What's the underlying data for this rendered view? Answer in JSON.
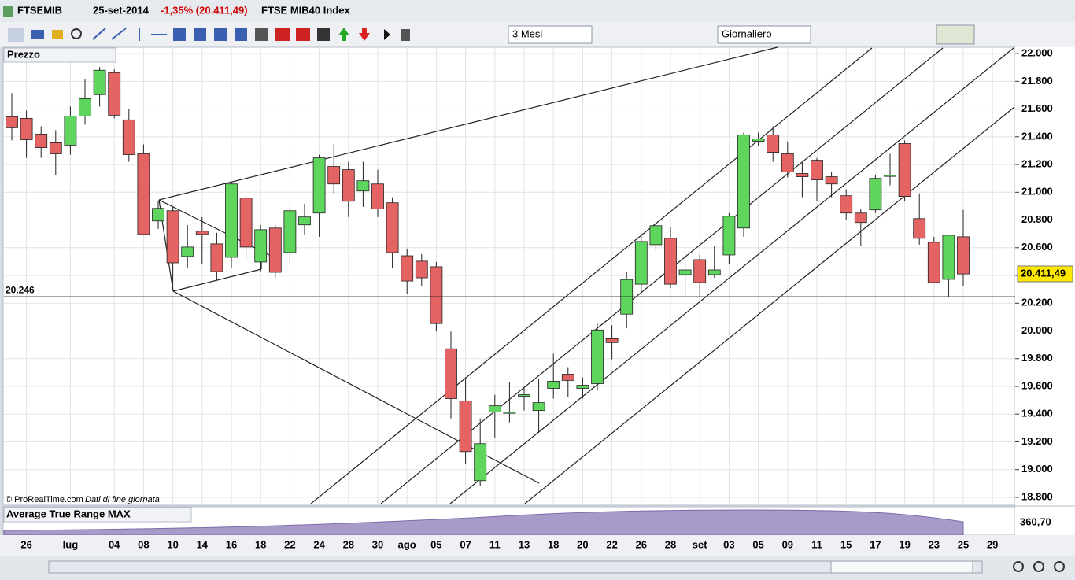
{
  "header": {
    "symbol": "FTSEMIB",
    "date": "25-set-2014",
    "change": "-1,35% (20.411,49)",
    "name": "FTSE MIB40 Index"
  },
  "toolbar": {
    "period": "3 Mesi",
    "interval": "Giornaliero"
  },
  "panel": {
    "title": "Prezzo",
    "copyright": "© ProRealTime.com",
    "note": "Dati di fine giornata"
  },
  "atr_panel": {
    "title": "Average True Range MAX",
    "value": "360,70"
  },
  "chart_data": {
    "type": "candlestick",
    "categories": [
      null,
      "26",
      null,
      null,
      "lug",
      null,
      null,
      "04",
      null,
      "08",
      null,
      "10",
      null,
      "14",
      null,
      "16",
      null,
      "18",
      null,
      "22",
      null,
      "24",
      null,
      "28",
      null,
      "30",
      null,
      "ago",
      null,
      "05",
      null,
      "07",
      null,
      "11",
      null,
      "13",
      null,
      "18",
      null,
      "20",
      null,
      "22",
      null,
      "26",
      null,
      "28",
      null,
      "set",
      null,
      "03",
      null,
      "05",
      null,
      "09",
      null,
      "11",
      null,
      "15",
      null,
      "17",
      null,
      "19",
      null,
      "23",
      null,
      "25",
      null,
      "29"
    ],
    "open": [
      21545,
      21533,
      21419,
      21357,
      21340,
      21550,
      21704,
      21863,
      21522,
      21277,
      20793,
      20867,
      20537,
      20719,
      20628,
      20531,
      20958,
      20497,
      20742,
      20565,
      20765,
      20850,
      21186,
      21163,
      21009,
      21060,
      20924,
      20542,
      20503,
      20463,
      19871,
      19495,
      18920,
      19415,
      19415,
      19529,
      19426,
      19586,
      19688,
      19586,
      19620,
      19944,
      20121,
      20337,
      20622,
      20668,
      20406,
      20514,
      20406,
      20548,
      20742,
      21368,
      21414,
      21277,
      21135,
      21231,
      21112,
      20975,
      20850,
      20873,
      21123,
      21351,
      20810,
      20639,
      20372,
      20679,
      null,
      null
    ],
    "high": [
      21715,
      21590,
      21476,
      21448,
      21618,
      21818,
      21903,
      21886,
      21601,
      21345,
      20935,
      20895,
      20764,
      20821,
      20708,
      21078,
      20975,
      20764,
      20764,
      20895,
      20918,
      21271,
      21345,
      21220,
      21220,
      21163,
      20964,
      20594,
      20554,
      20497,
      19996,
      19665,
      19369,
      19540,
      19631,
      19597,
      19654,
      19836,
      19739,
      19665,
      20053,
      20041,
      20423,
      20708,
      20782,
      20747,
      20565,
      20554,
      20611,
      20850,
      21431,
      21431,
      21476,
      21362,
      21220,
      21248,
      21146,
      21021,
      20878,
      21123,
      21277,
      21374,
      20992,
      20679,
      20690,
      20873,
      null,
      null
    ],
    "low": [
      21374,
      21248,
      21248,
      21123,
      21271,
      21488,
      21618,
      21533,
      21220,
      20696,
      20736,
      20309,
      20451,
      20480,
      20366,
      20451,
      20508,
      20423,
      20383,
      20491,
      20696,
      20679,
      20992,
      20821,
      20895,
      20821,
      20451,
      20269,
      20326,
      19996,
      19369,
      19039,
      18880,
      19227,
      19341,
      19426,
      19267,
      19512,
      19523,
      19512,
      19569,
      19796,
      20019,
      20280,
      20577,
      20309,
      20252,
      20252,
      20383,
      20480,
      20679,
      21334,
      21220,
      21106,
      20964,
      20935,
      20964,
      20804,
      20611,
      20850,
      21049,
      20935,
      20622,
      20349,
      20241,
      20326,
      null,
      null
    ],
    "close": [
      21465,
      21379,
      21322,
      21277,
      21550,
      21675,
      21880,
      21556,
      21271,
      20696,
      20884,
      20491,
      20605,
      20696,
      20428,
      21060,
      20605,
      20730,
      20423,
      20867,
      20822,
      21248,
      21060,
      20935,
      21083,
      20879,
      20565,
      20360,
      20383,
      20053,
      19512,
      19130,
      19187,
      19460,
      19415,
      19540,
      19483,
      19637,
      19643,
      19608,
      20007,
      19916,
      20371,
      20645,
      20759,
      20337,
      20440,
      20349,
      20440,
      20827,
      21414,
      21385,
      21288,
      21146,
      21112,
      21089,
      21060,
      20850,
      20782,
      21100,
      21123,
      20970,
      20668,
      20349,
      20690,
      20411,
      null,
      null
    ],
    "up_color": "#5ed65e",
    "down_color": "#e46464",
    "ylim": [
      18743,
      22046
    ],
    "yticks": [
      {
        "value": 18800,
        "label": "18.800"
      },
      {
        "value": 19000,
        "label": "19.000"
      },
      {
        "value": 19200,
        "label": "19.200"
      },
      {
        "value": 19400,
        "label": "19.400"
      },
      {
        "value": 19600,
        "label": "19.600"
      },
      {
        "value": 19800,
        "label": "19.800"
      },
      {
        "value": 20000,
        "label": "20.000"
      },
      {
        "value": 20200,
        "label": "20.200"
      },
      {
        "value": 20400,
        "label": "20.400"
      },
      {
        "value": 20600,
        "label": "20.600"
      },
      {
        "value": 20800,
        "label": "20.800"
      },
      {
        "value": 21000,
        "label": "21.000"
      },
      {
        "value": 21200,
        "label": "21.200"
      },
      {
        "value": 21400,
        "label": "21.400"
      },
      {
        "value": 21600,
        "label": "21.600"
      },
      {
        "value": 21800,
        "label": "21.800"
      },
      {
        "value": 22000,
        "label": "22.000"
      }
    ],
    "grid": true,
    "hline": {
      "value": 20246,
      "label": "20.246"
    },
    "last_price": {
      "value": 20411.49,
      "label": "20.411,49"
    }
  }
}
